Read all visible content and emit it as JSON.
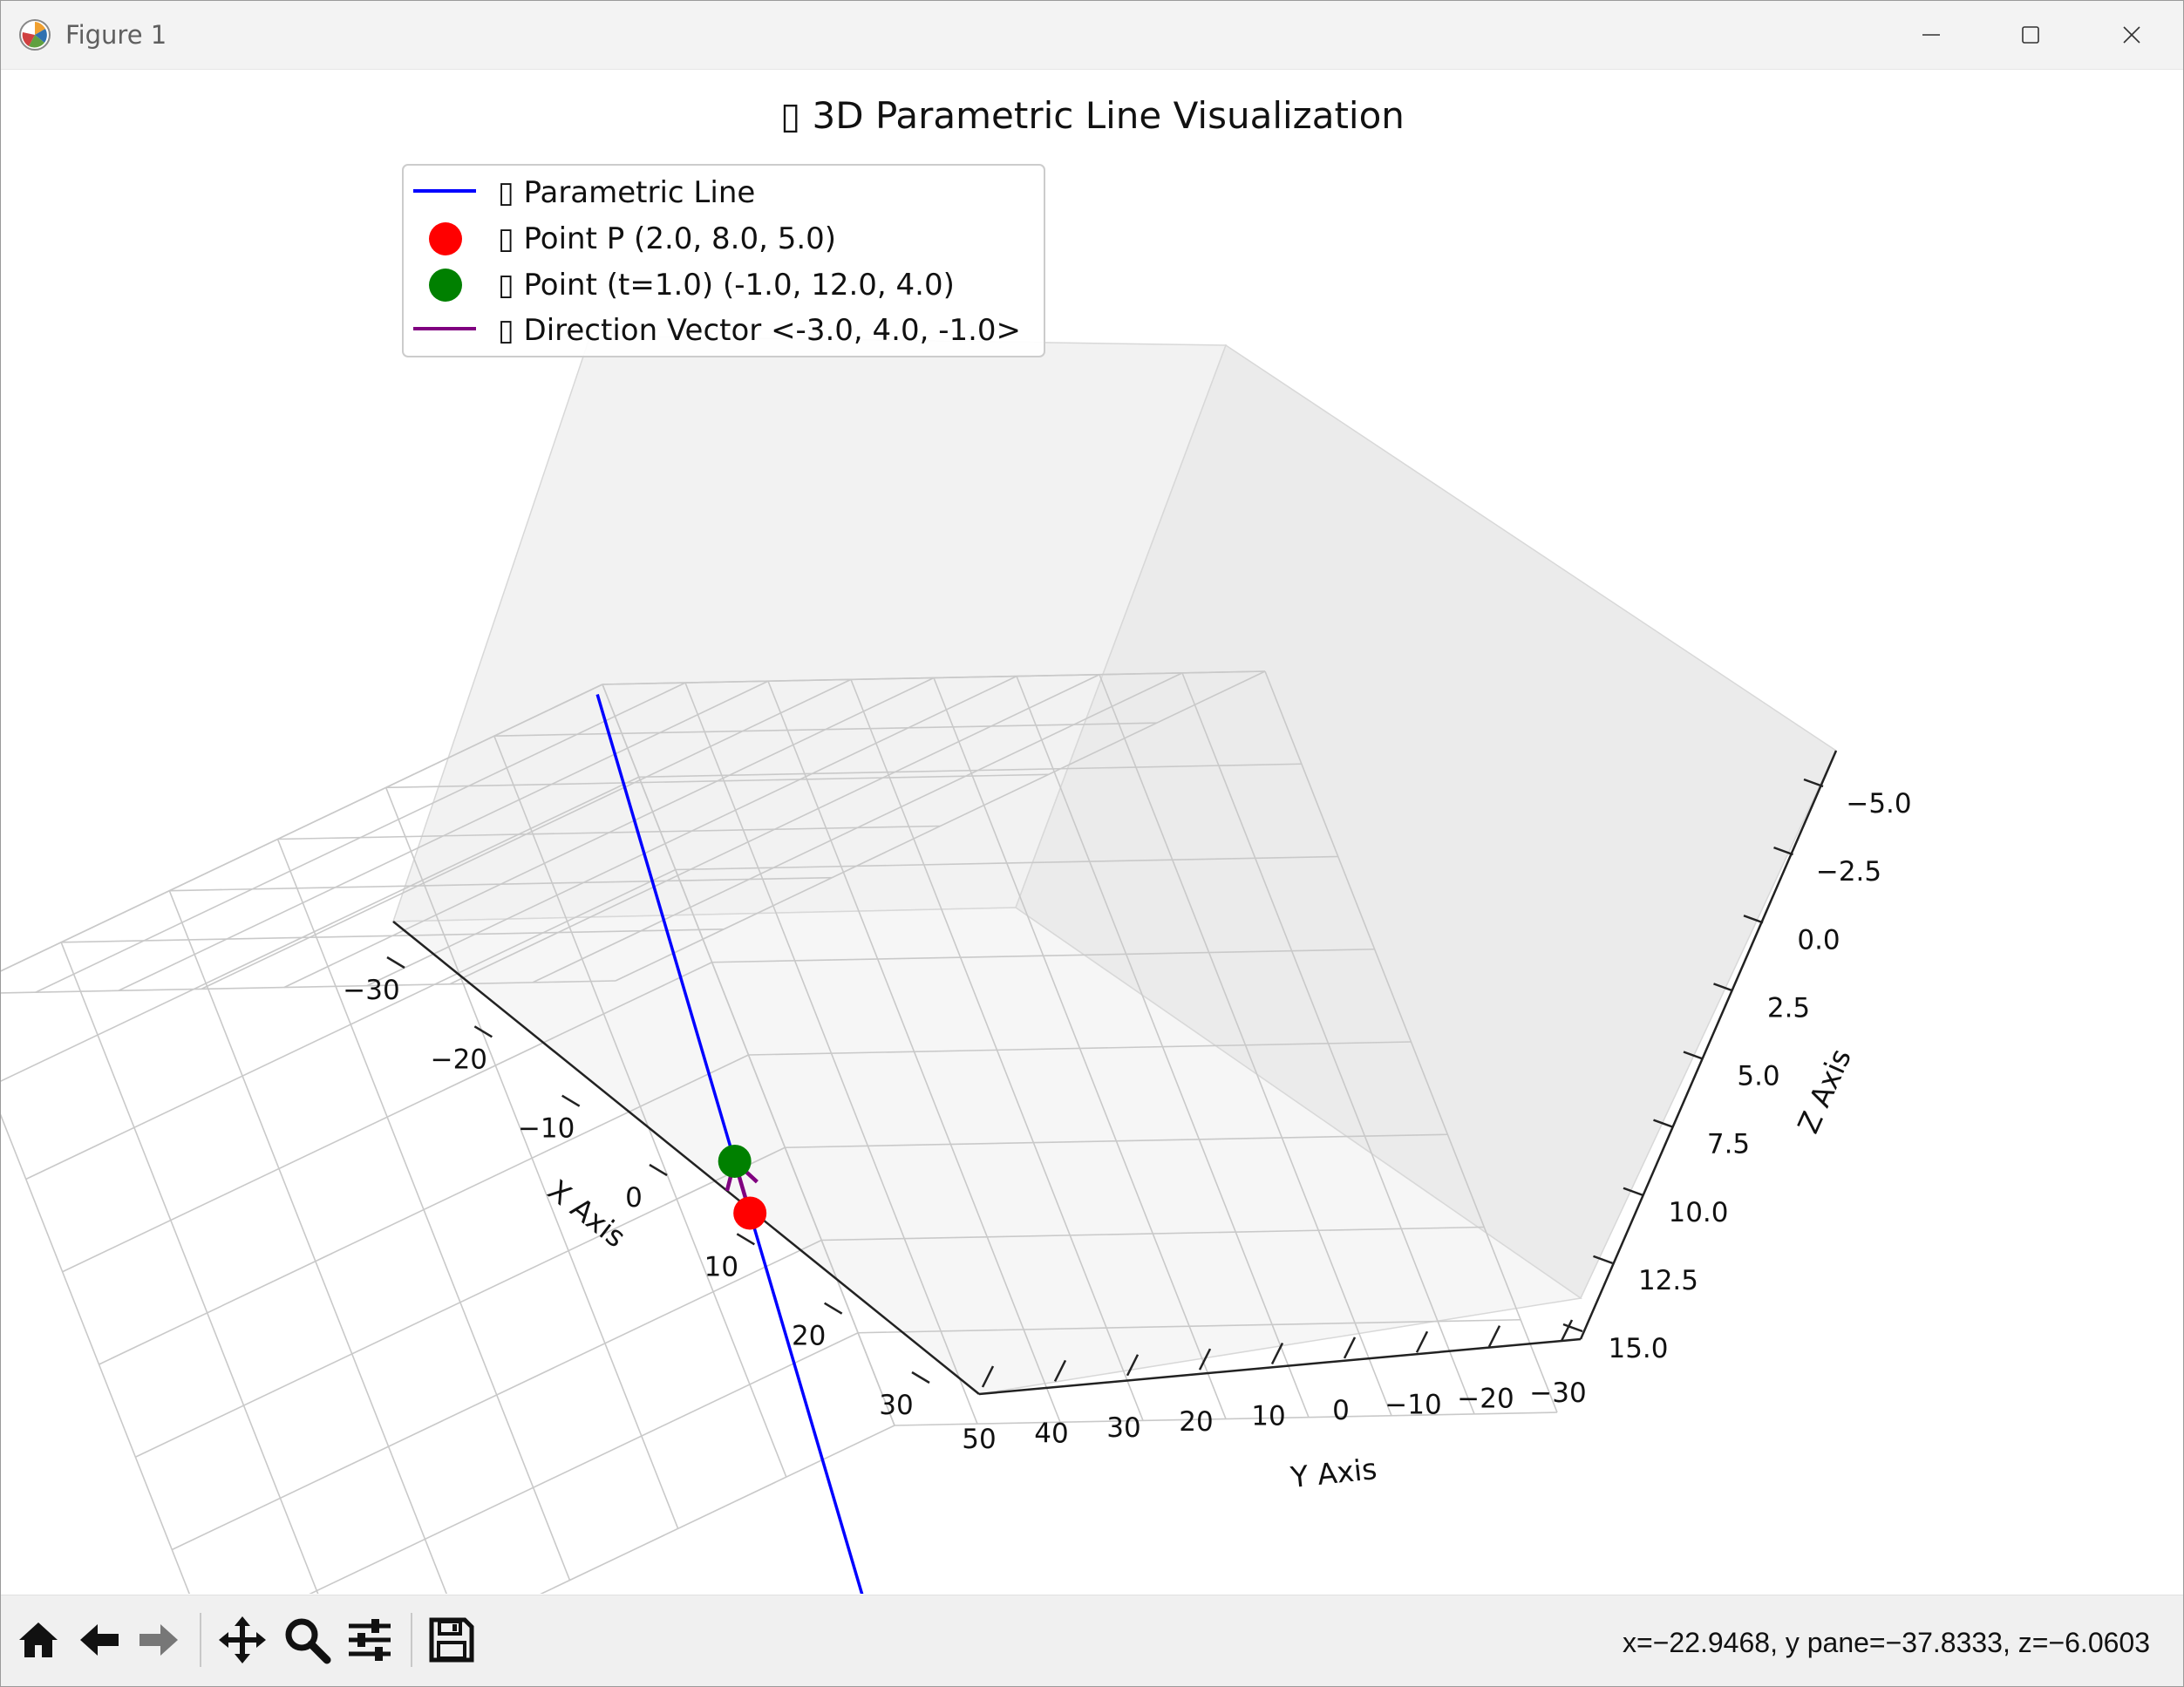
{
  "window": {
    "title": "Figure 1",
    "icon": "matplotlib-logo-icon",
    "controls": [
      "minimize-icon",
      "maximize-icon",
      "close-icon"
    ]
  },
  "figure": {
    "title": "▯ 3D Parametric Line Visualization",
    "legend": [
      {
        "label": "▯ Parametric Line",
        "marker": "line",
        "color": "#0000ff"
      },
      {
        "label": "▯ Point P (2.0, 8.0, 5.0)",
        "marker": "dot",
        "color": "#ff0000"
      },
      {
        "label": "▯ Point (t=1.0) (-1.0, 12.0, 4.0)",
        "marker": "dot",
        "color": "#008000"
      },
      {
        "label": "▯ Direction Vector <-3.0, 4.0, -1.0>",
        "marker": "line",
        "color": "#800080"
      }
    ],
    "x_axis": {
      "label": "X Axis",
      "ticks": [
        "−30",
        "−20",
        "−10",
        "0",
        "10",
        "20",
        "30"
      ]
    },
    "y_axis": {
      "label": "Y Axis",
      "ticks": [
        "50",
        "40",
        "30",
        "20",
        "10",
        "0",
        "−10",
        "−20",
        "−30"
      ]
    },
    "z_axis": {
      "label": "Z Axis",
      "ticks": [
        "−5.0",
        "−2.5",
        "0.0",
        "2.5",
        "5.0",
        "7.5",
        "10.0",
        "12.5",
        "15.0"
      ]
    }
  },
  "chart_data": {
    "type": "line",
    "title": "▯ 3D Parametric Line Visualization",
    "xlabel": "X Axis",
    "ylabel": "Y Axis",
    "zlabel": "Z Axis",
    "xlim": [
      -30,
      30
    ],
    "ylim": [
      -30,
      50
    ],
    "zlim": [
      -5,
      15
    ],
    "grid": true,
    "legend_position": "top-left",
    "series": [
      {
        "name": "▯ Parametric Line",
        "kind": "line",
        "color": "#0000ff",
        "points": [
          [
            -28,
            48,
            -5
          ],
          [
            32,
            -32,
            15
          ]
        ]
      },
      {
        "name": "▯ Point P (2.0, 8.0, 5.0)",
        "kind": "point",
        "color": "#ff0000",
        "points": [
          [
            2.0,
            8.0,
            5.0
          ]
        ]
      },
      {
        "name": "▯ Point (t=1.0) (-1.0, 12.0, 4.0)",
        "kind": "point",
        "color": "#008000",
        "points": [
          [
            -1.0,
            12.0,
            4.0
          ]
        ]
      },
      {
        "name": "▯ Direction Vector <-3.0, 4.0, -1.0>",
        "kind": "vector",
        "color": "#800080",
        "origin": [
          2.0,
          8.0,
          5.0
        ],
        "vector": [
          -3.0,
          4.0,
          -1.0
        ]
      }
    ]
  },
  "toolbar": {
    "tools": [
      {
        "name": "home-icon",
        "glyph": "⌂"
      },
      {
        "name": "back-arrow-icon",
        "glyph": "←"
      },
      {
        "name": "forward-arrow-icon",
        "glyph": "→"
      },
      {
        "name": "pan-move-icon",
        "glyph": "✥"
      },
      {
        "name": "zoom-magnifier-icon",
        "glyph": "⌕"
      },
      {
        "name": "configure-subplots-icon",
        "glyph": "☰"
      },
      {
        "name": "save-disk-icon",
        "glyph": "▣"
      }
    ],
    "coordinates": "x=−22.9468, y pane=−37.8333, z=−6.0603"
  }
}
